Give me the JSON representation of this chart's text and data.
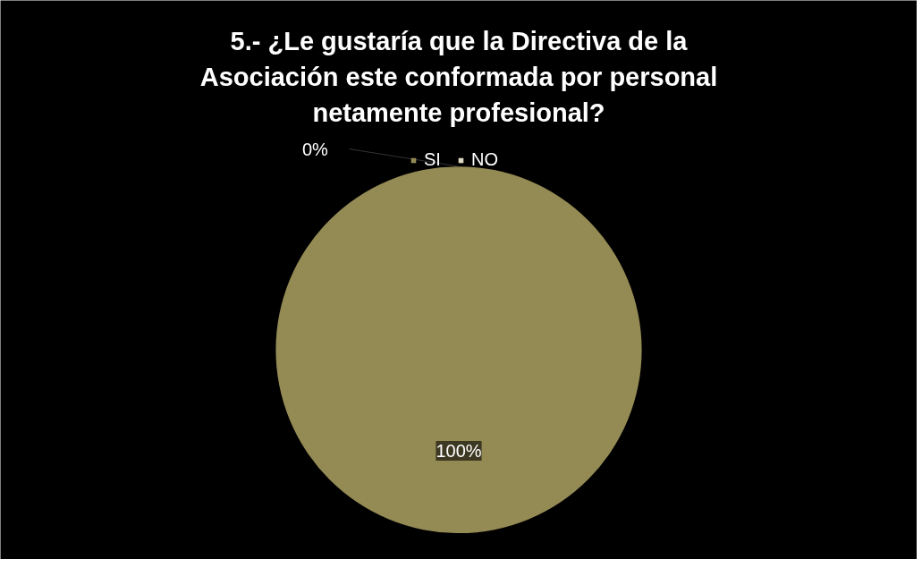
{
  "chart_data": {
    "type": "pie",
    "title": "5.- ¿Le gustaría que la Directiva de la Asociación este conformada por personal netamente profesional?",
    "categories": [
      "SI",
      "NO"
    ],
    "values": [
      100,
      0
    ],
    "colors": [
      "#948a54",
      "#ddd9c3"
    ],
    "value_labels": [
      "100%",
      "0%"
    ],
    "legend": "top"
  }
}
